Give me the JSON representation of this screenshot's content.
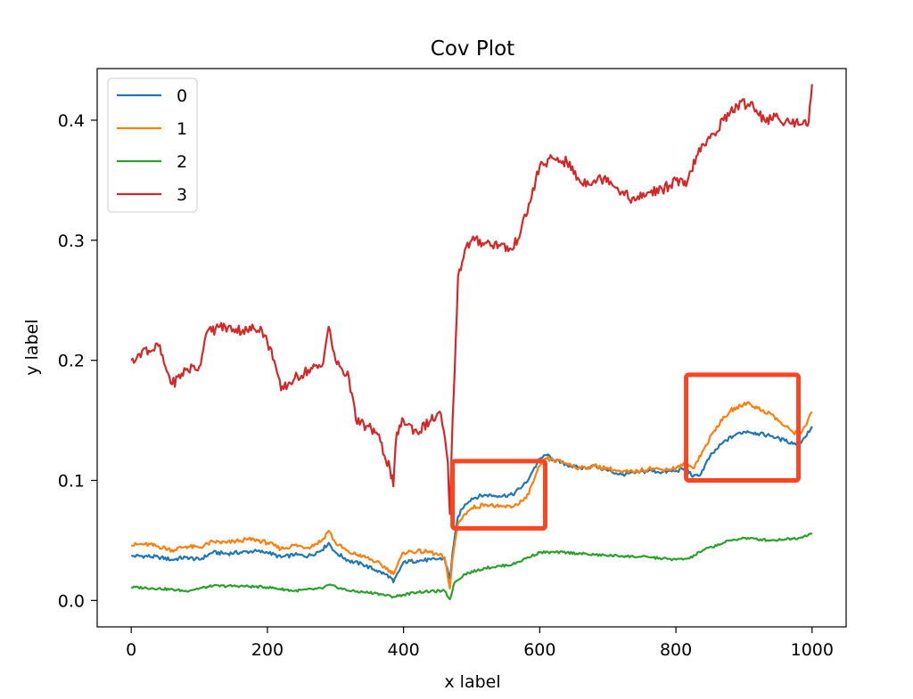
{
  "chart_data": {
    "type": "line",
    "title": "Cov Plot",
    "xlabel": "x label",
    "ylabel": "y label",
    "xlim": [
      -50,
      1050
    ],
    "ylim": [
      -0.022,
      0.443
    ],
    "x_ticks": [
      0,
      200,
      400,
      600,
      800,
      1000
    ],
    "x_tick_labels": [
      "0",
      "200",
      "400",
      "600",
      "800",
      "1000"
    ],
    "y_ticks": [
      0.0,
      0.1,
      0.2,
      0.3,
      0.4
    ],
    "y_tick_labels": [
      "0.0",
      "0.1",
      "0.2",
      "0.3",
      "0.4"
    ],
    "grid": false,
    "legend": {
      "placement": "top-left",
      "entries": [
        "0",
        "1",
        "2",
        "3"
      ]
    },
    "series": [
      {
        "name": "0",
        "color": "#1f77b4",
        "points": [
          [
            0,
            0.037
          ],
          [
            20,
            0.037
          ],
          [
            40,
            0.036
          ],
          [
            60,
            0.034
          ],
          [
            80,
            0.036
          ],
          [
            100,
            0.034
          ],
          [
            120,
            0.04
          ],
          [
            140,
            0.039
          ],
          [
            160,
            0.04
          ],
          [
            180,
            0.041
          ],
          [
            200,
            0.04
          ],
          [
            220,
            0.036
          ],
          [
            240,
            0.038
          ],
          [
            260,
            0.037
          ],
          [
            280,
            0.042
          ],
          [
            290,
            0.048
          ],
          [
            300,
            0.04
          ],
          [
            320,
            0.033
          ],
          [
            340,
            0.03
          ],
          [
            360,
            0.025
          ],
          [
            380,
            0.02
          ],
          [
            385,
            0.015
          ],
          [
            400,
            0.032
          ],
          [
            420,
            0.033
          ],
          [
            440,
            0.034
          ],
          [
            460,
            0.035
          ],
          [
            468,
            0.018
          ],
          [
            472,
            0.04
          ],
          [
            480,
            0.07
          ],
          [
            490,
            0.08
          ],
          [
            500,
            0.085
          ],
          [
            520,
            0.088
          ],
          [
            540,
            0.087
          ],
          [
            560,
            0.088
          ],
          [
            580,
            0.098
          ],
          [
            590,
            0.108
          ],
          [
            600,
            0.118
          ],
          [
            610,
            0.121
          ],
          [
            620,
            0.117
          ],
          [
            640,
            0.113
          ],
          [
            660,
            0.11
          ],
          [
            680,
            0.112
          ],
          [
            700,
            0.108
          ],
          [
            720,
            0.105
          ],
          [
            740,
            0.106
          ],
          [
            760,
            0.108
          ],
          [
            780,
            0.107
          ],
          [
            800,
            0.108
          ],
          [
            815,
            0.11
          ],
          [
            825,
            0.103
          ],
          [
            835,
            0.104
          ],
          [
            850,
            0.12
          ],
          [
            870,
            0.132
          ],
          [
            890,
            0.139
          ],
          [
            905,
            0.141
          ],
          [
            920,
            0.139
          ],
          [
            940,
            0.137
          ],
          [
            960,
            0.133
          ],
          [
            980,
            0.13
          ],
          [
            990,
            0.136
          ],
          [
            1000,
            0.145
          ]
        ]
      },
      {
        "name": "1",
        "color": "#ff7f0e",
        "points": [
          [
            0,
            0.046
          ],
          [
            20,
            0.047
          ],
          [
            40,
            0.045
          ],
          [
            60,
            0.042
          ],
          [
            80,
            0.045
          ],
          [
            100,
            0.044
          ],
          [
            120,
            0.049
          ],
          [
            140,
            0.048
          ],
          [
            160,
            0.05
          ],
          [
            180,
            0.051
          ],
          [
            200,
            0.048
          ],
          [
            220,
            0.043
          ],
          [
            240,
            0.046
          ],
          [
            260,
            0.044
          ],
          [
            280,
            0.05
          ],
          [
            290,
            0.058
          ],
          [
            300,
            0.048
          ],
          [
            320,
            0.04
          ],
          [
            340,
            0.037
          ],
          [
            360,
            0.032
          ],
          [
            380,
            0.025
          ],
          [
            385,
            0.022
          ],
          [
            400,
            0.04
          ],
          [
            420,
            0.041
          ],
          [
            440,
            0.04
          ],
          [
            460,
            0.036
          ],
          [
            468,
            0.01
          ],
          [
            472,
            0.035
          ],
          [
            480,
            0.064
          ],
          [
            490,
            0.072
          ],
          [
            500,
            0.077
          ],
          [
            520,
            0.08
          ],
          [
            540,
            0.078
          ],
          [
            560,
            0.078
          ],
          [
            580,
            0.085
          ],
          [
            590,
            0.098
          ],
          [
            600,
            0.112
          ],
          [
            610,
            0.118
          ],
          [
            620,
            0.117
          ],
          [
            640,
            0.114
          ],
          [
            660,
            0.11
          ],
          [
            680,
            0.112
          ],
          [
            700,
            0.11
          ],
          [
            720,
            0.107
          ],
          [
            740,
            0.107
          ],
          [
            760,
            0.11
          ],
          [
            780,
            0.109
          ],
          [
            800,
            0.11
          ],
          [
            815,
            0.114
          ],
          [
            825,
            0.11
          ],
          [
            840,
            0.125
          ],
          [
            860,
            0.145
          ],
          [
            880,
            0.158
          ],
          [
            895,
            0.162
          ],
          [
            905,
            0.165
          ],
          [
            920,
            0.16
          ],
          [
            940,
            0.155
          ],
          [
            960,
            0.145
          ],
          [
            980,
            0.138
          ],
          [
            990,
            0.145
          ],
          [
            1000,
            0.157
          ]
        ]
      },
      {
        "name": "2",
        "color": "#2ca02c",
        "points": [
          [
            0,
            0.011
          ],
          [
            40,
            0.01
          ],
          [
            80,
            0.008
          ],
          [
            120,
            0.012
          ],
          [
            160,
            0.012
          ],
          [
            200,
            0.011
          ],
          [
            240,
            0.008
          ],
          [
            280,
            0.01
          ],
          [
            290,
            0.013
          ],
          [
            320,
            0.008
          ],
          [
            360,
            0.006
          ],
          [
            385,
            0.003
          ],
          [
            420,
            0.007
          ],
          [
            460,
            0.008
          ],
          [
            468,
            0.001
          ],
          [
            475,
            0.015
          ],
          [
            490,
            0.022
          ],
          [
            520,
            0.027
          ],
          [
            560,
            0.03
          ],
          [
            580,
            0.035
          ],
          [
            600,
            0.04
          ],
          [
            640,
            0.04
          ],
          [
            680,
            0.038
          ],
          [
            720,
            0.037
          ],
          [
            760,
            0.036
          ],
          [
            800,
            0.034
          ],
          [
            820,
            0.035
          ],
          [
            840,
            0.042
          ],
          [
            880,
            0.05
          ],
          [
            900,
            0.052
          ],
          [
            940,
            0.05
          ],
          [
            960,
            0.051
          ],
          [
            980,
            0.052
          ],
          [
            1000,
            0.056
          ]
        ]
      },
      {
        "name": "3",
        "color": "#d62728",
        "points": [
          [
            0,
            0.2
          ],
          [
            10,
            0.205
          ],
          [
            20,
            0.21
          ],
          [
            30,
            0.208
          ],
          [
            40,
            0.212
          ],
          [
            50,
            0.195
          ],
          [
            60,
            0.18
          ],
          [
            80,
            0.192
          ],
          [
            100,
            0.195
          ],
          [
            110,
            0.222
          ],
          [
            130,
            0.228
          ],
          [
            150,
            0.226
          ],
          [
            170,
            0.225
          ],
          [
            190,
            0.228
          ],
          [
            200,
            0.215
          ],
          [
            210,
            0.2
          ],
          [
            220,
            0.175
          ],
          [
            240,
            0.185
          ],
          [
            260,
            0.192
          ],
          [
            280,
            0.195
          ],
          [
            290,
            0.228
          ],
          [
            300,
            0.2
          ],
          [
            320,
            0.185
          ],
          [
            330,
            0.15
          ],
          [
            345,
            0.145
          ],
          [
            360,
            0.14
          ],
          [
            380,
            0.11
          ],
          [
            385,
            0.095
          ],
          [
            390,
            0.14
          ],
          [
            400,
            0.15
          ],
          [
            420,
            0.14
          ],
          [
            440,
            0.15
          ],
          [
            455,
            0.155
          ],
          [
            465,
            0.115
          ],
          [
            468,
            0.072
          ],
          [
            472,
            0.15
          ],
          [
            475,
            0.19
          ],
          [
            480,
            0.27
          ],
          [
            490,
            0.292
          ],
          [
            500,
            0.3
          ],
          [
            520,
            0.298
          ],
          [
            540,
            0.296
          ],
          [
            560,
            0.292
          ],
          [
            580,
            0.32
          ],
          [
            600,
            0.362
          ],
          [
            620,
            0.368
          ],
          [
            640,
            0.365
          ],
          [
            660,
            0.348
          ],
          [
            680,
            0.35
          ],
          [
            700,
            0.352
          ],
          [
            720,
            0.34
          ],
          [
            740,
            0.333
          ],
          [
            760,
            0.34
          ],
          [
            780,
            0.342
          ],
          [
            800,
            0.35
          ],
          [
            815,
            0.345
          ],
          [
            830,
            0.37
          ],
          [
            850,
            0.385
          ],
          [
            870,
            0.4
          ],
          [
            890,
            0.412
          ],
          [
            910,
            0.415
          ],
          [
            930,
            0.4
          ],
          [
            950,
            0.402
          ],
          [
            970,
            0.397
          ],
          [
            990,
            0.4
          ],
          [
            995,
            0.398
          ],
          [
            1000,
            0.43
          ]
        ]
      }
    ],
    "annotations": [
      {
        "type": "box",
        "color": "#ff4422",
        "x_range": [
          472,
          608
        ],
        "y_range": [
          0.06,
          0.116
        ]
      },
      {
        "type": "box",
        "color": "#ff4422",
        "x_range": [
          815,
          980
        ],
        "y_range": [
          0.1,
          0.188
        ]
      }
    ]
  }
}
